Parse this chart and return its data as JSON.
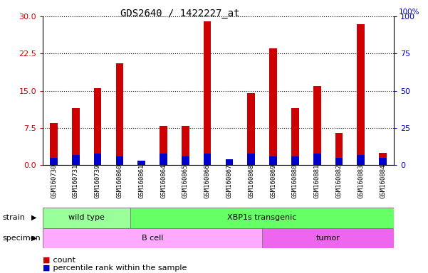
{
  "title": "GDS2640 / 1422227_at",
  "samples": [
    "GSM160730",
    "GSM160731",
    "GSM160739",
    "GSM160860",
    "GSM160861",
    "GSM160864",
    "GSM160865",
    "GSM160866",
    "GSM160867",
    "GSM160868",
    "GSM160869",
    "GSM160880",
    "GSM160881",
    "GSM160882",
    "GSM160883",
    "GSM160884"
  ],
  "count_values": [
    8.5,
    11.5,
    15.5,
    20.5,
    0.3,
    8.0,
    8.0,
    29.0,
    1.2,
    14.5,
    23.5,
    11.5,
    16.0,
    6.5,
    28.5,
    2.5
  ],
  "percentile_values": [
    5,
    7,
    8,
    6,
    3,
    8,
    6,
    8,
    4,
    8,
    6,
    6,
    8,
    5,
    7,
    5
  ],
  "bar_color": "#cc0000",
  "percentile_color": "#0000cc",
  "ylim_left": [
    0,
    30
  ],
  "ylim_right": [
    0,
    100
  ],
  "yticks_left": [
    0,
    7.5,
    15,
    22.5,
    30
  ],
  "yticks_right": [
    0,
    25,
    50,
    75,
    100
  ],
  "strain_labels": [
    {
      "text": "wild type",
      "start": 0,
      "end": 4,
      "color": "#99ff99"
    },
    {
      "text": "XBP1s transgenic",
      "start": 4,
      "end": 16,
      "color": "#66ff66"
    }
  ],
  "specimen_labels": [
    {
      "text": "B cell",
      "start": 0,
      "end": 10,
      "color": "#ffaaff"
    },
    {
      "text": "tumor",
      "start": 10,
      "end": 16,
      "color": "#ee66ee"
    }
  ],
  "legend_count_color": "#cc0000",
  "legend_percentile_color": "#0000cc",
  "bar_width": 0.35,
  "bg_color": "#ffffff",
  "tick_label_color_left": "#cc0000",
  "tick_label_color_right": "#0000cc"
}
